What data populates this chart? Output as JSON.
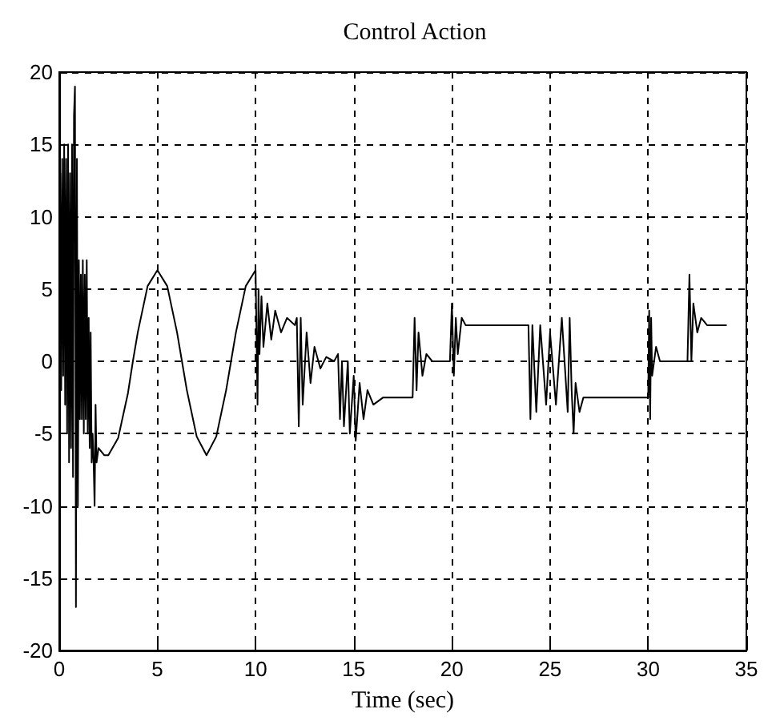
{
  "chart_data": {
    "type": "line",
    "title": "Control Action",
    "xlabel": "Time (sec)",
    "x": [
      0,
      0.05,
      0.1,
      0.15,
      0.2,
      0.25,
      0.3,
      0.35,
      0.4,
      0.45,
      0.5,
      0.55,
      0.6,
      0.65,
      0.7,
      0.75,
      0.8,
      0.85,
      0.9,
      0.95,
      1.0,
      1.05,
      1.1,
      1.15,
      1.2,
      1.25,
      1.3,
      1.35,
      1.4,
      1.45,
      1.5,
      1.55,
      1.6,
      1.65,
      1.7,
      1.75,
      1.8,
      1.85,
      1.9,
      2.0,
      2.3,
      2.5,
      3.0,
      3.5,
      3.75,
      4.0,
      4.5,
      5.0,
      5.5,
      6.0,
      6.25,
      6.5,
      7.0,
      7.5,
      8.0,
      8.5,
      8.75,
      9.0,
      9.5,
      10.0,
      10.1,
      10.15,
      10.2,
      10.3,
      10.4,
      10.6,
      10.8,
      11.0,
      11.3,
      11.6,
      12.0,
      12.1,
      12.2,
      12.3,
      12.4,
      12.6,
      12.8,
      13.0,
      13.3,
      13.6,
      14.0,
      14.2,
      14.3,
      14.4,
      14.5,
      14.7,
      14.8,
      15.0,
      15.1,
      15.3,
      15.5,
      15.7,
      16.0,
      16.5,
      18.0,
      18.1,
      18.2,
      18.3,
      18.5,
      18.7,
      19.0,
      19.9,
      20.0,
      20.1,
      20.2,
      20.3,
      20.5,
      20.7,
      23.9,
      24.0,
      24.1,
      24.3,
      24.5,
      24.8,
      25.0,
      25.3,
      25.6,
      25.9,
      26.0,
      26.1,
      26.2,
      26.3,
      26.5,
      26.7,
      30.0,
      30.05,
      30.1,
      30.15,
      30.2,
      30.4,
      30.6,
      32.0,
      32.1,
      32.2,
      32.3,
      32.5,
      32.7,
      33.0,
      34.0
    ],
    "series": [
      {
        "color": "#000000",
        "values": [
          0,
          13,
          -2,
          14,
          -1,
          15,
          -3,
          14,
          -5,
          15,
          -7,
          13,
          -6,
          15,
          -8,
          17,
          19,
          -17,
          14,
          -10,
          7,
          -4,
          6,
          -4,
          7,
          -5,
          6,
          -4,
          7,
          -5,
          3,
          -6,
          2,
          -7,
          -5,
          -7,
          -10,
          -3,
          -7,
          -6,
          -6.5,
          -6.5,
          -5.3,
          -2.2,
          0,
          2,
          5.2,
          6.3,
          5.2,
          2,
          0,
          -2,
          -5.2,
          -6.5,
          -5.2,
          -2,
          0,
          2,
          5.2,
          6.3,
          -3,
          5,
          0.5,
          4.5,
          1,
          4,
          1.5,
          3.5,
          2,
          3,
          2.5,
          3,
          -4.5,
          3,
          -3,
          2,
          -1.5,
          1,
          -0.5,
          0.3,
          0,
          0.5,
          -4,
          0,
          -4.5,
          0,
          -5,
          -1,
          -5.5,
          -1.5,
          -4,
          -2,
          -3,
          -2.5,
          -2.5,
          3,
          -2,
          2,
          -1,
          0.5,
          0,
          0,
          4,
          -1,
          3,
          0.5,
          3,
          2.5,
          2.5,
          -4,
          2.5,
          -3.5,
          2.5,
          -3,
          2,
          -3,
          3,
          -3.5,
          3,
          -2,
          -5,
          -1.5,
          -3.5,
          -2.5,
          -2.5,
          3.5,
          -4,
          3,
          -1,
          1,
          0,
          0,
          6,
          0,
          4,
          2,
          3,
          2.5,
          2.5
        ]
      }
    ],
    "xlim": [
      0,
      35
    ],
    "xticks": [
      0,
      5,
      10,
      15,
      20,
      25,
      30,
      35
    ],
    "ylim": [
      -20,
      20
    ],
    "yticks": [
      -20,
      -15,
      -10,
      -5,
      0,
      5,
      10,
      15,
      20
    ],
    "grid": true,
    "line_style": "solid",
    "marker": "none"
  }
}
